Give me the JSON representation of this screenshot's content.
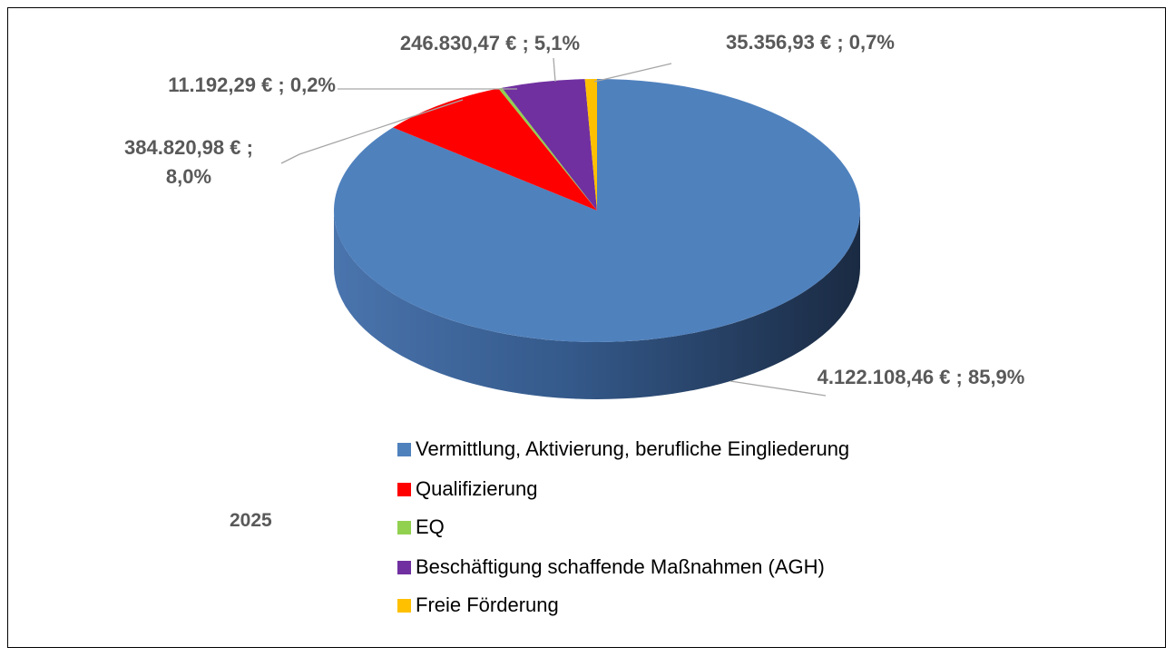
{
  "chart_data": {
    "type": "pie",
    "categories": [
      "Vermittlung, Aktivierung, berufliche Eingliederung",
      "Qualifizierung",
      "EQ",
      "Beschäftigung schaffende Maßnahmen (AGH)",
      "Freie Förderung"
    ],
    "values": [
      4122108.46,
      384820.98,
      11192.29,
      246830.47,
      35356.93
    ],
    "value_labels": [
      "4.122.108,46 € ; 85,9%",
      "384.820,98 € ; 8,0%",
      "11.192,29 € ; 0,2%",
      "246.830,47 € ; 5,1%",
      "35.356,93 € ; 0,7%"
    ],
    "colors": [
      "#4f81bd",
      "#ff0000",
      "#92d050",
      "#7030a0",
      "#ffc000"
    ],
    "annotation": "2025",
    "legend": "bottom"
  }
}
